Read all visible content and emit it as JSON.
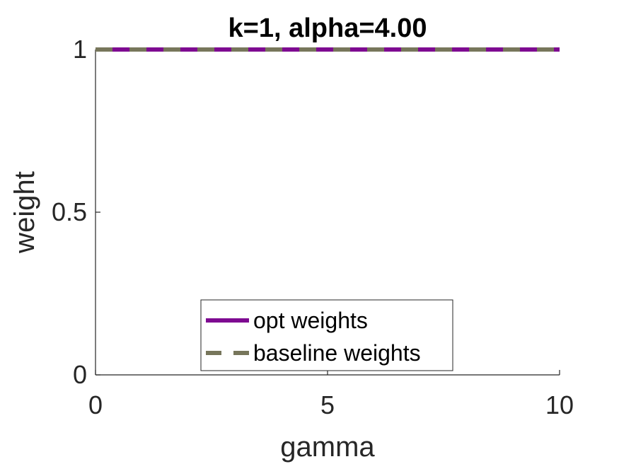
{
  "chart_data": {
    "type": "line",
    "title": "k=1, alpha=4.00",
    "xlabel": "gamma",
    "ylabel": "weight",
    "xlim": [
      0,
      10
    ],
    "ylim": [
      0,
      1
    ],
    "xticks": [
      0,
      5,
      10
    ],
    "xtick_labels": [
      "0",
      "5",
      "10"
    ],
    "yticks": [
      0,
      0.5,
      1
    ],
    "ytick_labels": [
      "0",
      "0.5",
      "1"
    ],
    "grid": false,
    "legend_position": "bottom-center",
    "series": [
      {
        "name": "opt weights",
        "color": "#7e0a91",
        "style": "solid",
        "x": [
          0,
          10
        ],
        "y": [
          1,
          1
        ]
      },
      {
        "name": "baseline weights",
        "color": "#77765b",
        "style": "dashed",
        "x": [
          0,
          10
        ],
        "y": [
          1,
          1
        ]
      }
    ]
  }
}
